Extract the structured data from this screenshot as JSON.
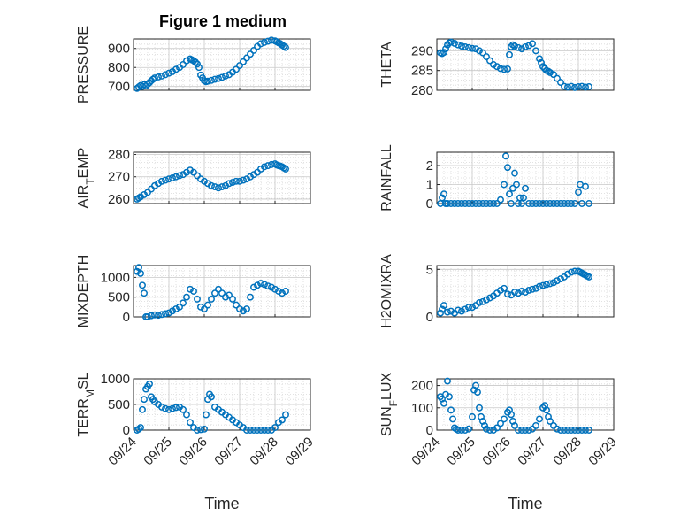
{
  "figure": {
    "title": "Figure 1 medium",
    "xlabel": "Time"
  },
  "chart_data": [
    {
      "type": "scatter",
      "ylabel": "PRESSURE",
      "ylim": [
        680,
        950
      ],
      "yticks": [
        "700",
        "800",
        "900"
      ],
      "ytick_values": [
        700,
        800,
        900
      ],
      "xlim": [
        0,
        5
      ],
      "xticks": [
        "09/24",
        "09/25",
        "09/26",
        "09/27",
        "09/28",
        "09/29"
      ],
      "grid": true,
      "marker_color": "#0072BD",
      "x": [
        0.1,
        0.15,
        0.2,
        0.25,
        0.3,
        0.35,
        0.4,
        0.45,
        0.5,
        0.55,
        0.6,
        0.7,
        0.8,
        0.9,
        1.0,
        1.1,
        1.2,
        1.3,
        1.4,
        1.5,
        1.6,
        1.65,
        1.7,
        1.75,
        1.8,
        1.85,
        1.9,
        1.95,
        2.0,
        2.05,
        2.1,
        2.2,
        2.3,
        2.4,
        2.5,
        2.6,
        2.7,
        2.8,
        2.9,
        3.0,
        3.1,
        3.2,
        3.3,
        3.4,
        3.5,
        3.6,
        3.7,
        3.8,
        3.9,
        4.0,
        4.05,
        4.1,
        4.15,
        4.2,
        4.25,
        4.3
      ],
      "y": [
        690,
        698,
        705,
        700,
        710,
        703,
        712,
        720,
        730,
        738,
        745,
        750,
        755,
        762,
        770,
        778,
        790,
        800,
        815,
        835,
        845,
        840,
        835,
        828,
        818,
        800,
        760,
        745,
        730,
        725,
        728,
        732,
        738,
        742,
        748,
        755,
        762,
        775,
        790,
        810,
        830,
        850,
        870,
        890,
        910,
        925,
        932,
        938,
        944,
        940,
        935,
        930,
        925,
        918,
        912,
        905
      ]
    },
    {
      "type": "scatter",
      "ylabel": "THETA",
      "ylim": [
        280,
        293
      ],
      "yticks": [
        "280",
        "285",
        "290"
      ],
      "ytick_values": [
        280,
        285,
        290
      ],
      "xlim": [
        0,
        5
      ],
      "xticks": [
        "09/24",
        "09/25",
        "09/26",
        "09/27",
        "09/28",
        "09/29"
      ],
      "grid": true,
      "marker_color": "#0072BD",
      "x": [
        0.1,
        0.15,
        0.2,
        0.25,
        0.3,
        0.35,
        0.4,
        0.5,
        0.6,
        0.7,
        0.8,
        0.9,
        1.0,
        1.1,
        1.2,
        1.3,
        1.4,
        1.5,
        1.6,
        1.7,
        1.8,
        1.9,
        2.0,
        2.05,
        2.1,
        2.15,
        2.2,
        2.3,
        2.4,
        2.5,
        2.6,
        2.7,
        2.8,
        2.9,
        2.95,
        3.0,
        3.05,
        3.1,
        3.15,
        3.2,
        3.3,
        3.4,
        3.5,
        3.6,
        3.7,
        3.8,
        3.9,
        4.0,
        4.1,
        4.2,
        4.3
      ],
      "y": [
        289.5,
        289.3,
        289.6,
        290.5,
        291.5,
        292.0,
        292.2,
        291.9,
        291.5,
        291.2,
        291.0,
        290.8,
        290.6,
        290.5,
        290.0,
        289.5,
        288.5,
        287.5,
        286.5,
        286.0,
        285.5,
        285.3,
        285.4,
        289.0,
        291.0,
        291.5,
        291.2,
        290.8,
        290.5,
        291.0,
        291.3,
        291.8,
        290.0,
        288.0,
        287.0,
        286.0,
        285.5,
        285.0,
        284.8,
        284.5,
        284.0,
        283.0,
        282.0,
        281.0,
        280.8,
        281.0,
        280.7,
        280.9,
        281.0,
        280.8,
        280.9
      ]
    },
    {
      "type": "scatter",
      "ylabel": "AIR_TEMP",
      "ylim": [
        258,
        281
      ],
      "yticks": [
        "260",
        "270",
        "280"
      ],
      "ytick_values": [
        260,
        270,
        280
      ],
      "xlim": [
        0,
        5
      ],
      "xticks": [
        "09/24",
        "09/25",
        "09/26",
        "09/27",
        "09/28",
        "09/29"
      ],
      "grid": true,
      "marker_color": "#0072BD",
      "x": [
        0.1,
        0.15,
        0.2,
        0.3,
        0.4,
        0.5,
        0.6,
        0.7,
        0.8,
        0.9,
        1.0,
        1.1,
        1.2,
        1.3,
        1.4,
        1.5,
        1.6,
        1.7,
        1.8,
        1.9,
        2.0,
        2.1,
        2.2,
        2.3,
        2.4,
        2.5,
        2.6,
        2.7,
        2.8,
        2.9,
        3.0,
        3.1,
        3.2,
        3.3,
        3.4,
        3.5,
        3.6,
        3.7,
        3.8,
        3.9,
        4.0,
        4.05,
        4.1,
        4.15,
        4.2,
        4.25,
        4.3
      ],
      "y": [
        260,
        260.5,
        261,
        262,
        263,
        264.5,
        266,
        267,
        268,
        268.5,
        269,
        269.5,
        270,
        270.5,
        271,
        272,
        273,
        272,
        270.5,
        269,
        268,
        267,
        266,
        265.5,
        265,
        265.5,
        266,
        267,
        267.5,
        268,
        268,
        268.5,
        269,
        270,
        271,
        272,
        273.5,
        274.5,
        275,
        275.5,
        275.8,
        275.3,
        275,
        274.8,
        274.5,
        274,
        273.5
      ]
    },
    {
      "type": "scatter",
      "ylabel": "RAINFALL",
      "ylim": [
        0,
        2.7
      ],
      "yticks": [
        "0",
        "1",
        "2"
      ],
      "ytick_values": [
        0,
        1,
        2
      ],
      "xlim": [
        0,
        5
      ],
      "xticks": [
        "09/24",
        "09/25",
        "09/26",
        "09/27",
        "09/28",
        "09/29"
      ],
      "grid": true,
      "marker_color": "#0072BD",
      "x": [
        0.1,
        0.15,
        0.2,
        0.25,
        0.3,
        0.4,
        0.5,
        0.6,
        0.7,
        0.8,
        0.9,
        1.0,
        1.1,
        1.2,
        1.3,
        1.4,
        1.5,
        1.6,
        1.7,
        1.8,
        1.9,
        1.95,
        2.0,
        2.05,
        2.1,
        2.15,
        2.2,
        2.25,
        2.3,
        2.35,
        2.4,
        2.45,
        2.5,
        2.6,
        2.7,
        2.8,
        2.9,
        3.0,
        3.1,
        3.2,
        3.3,
        3.4,
        3.5,
        3.6,
        3.7,
        3.8,
        3.9,
        4.0,
        4.05,
        4.1,
        4.2,
        4.3
      ],
      "y": [
        0,
        0.3,
        0.5,
        0,
        0,
        0,
        0,
        0,
        0,
        0,
        0,
        0,
        0,
        0,
        0,
        0,
        0,
        0,
        0,
        0.2,
        1.0,
        2.5,
        1.9,
        0.5,
        0,
        0.8,
        1.6,
        1.0,
        0,
        0.3,
        0,
        0.3,
        0.8,
        0,
        0,
        0,
        0,
        0,
        0,
        0,
        0,
        0,
        0,
        0,
        0,
        0,
        0,
        0.6,
        1.0,
        0,
        0.9,
        0
      ]
    },
    {
      "type": "scatter",
      "ylabel": "MIXDEPTH",
      "ylim": [
        0,
        1300
      ],
      "yticks": [
        "0",
        "500",
        "1000"
      ],
      "ytick_values": [
        0,
        500,
        1000
      ],
      "xlim": [
        0,
        5
      ],
      "xticks": [
        "09/24",
        "09/25",
        "09/26",
        "09/27",
        "09/28",
        "09/29"
      ],
      "grid": true,
      "marker_color": "#0072BD",
      "x": [
        0.1,
        0.15,
        0.2,
        0.25,
        0.3,
        0.35,
        0.4,
        0.5,
        0.6,
        0.7,
        0.8,
        0.9,
        1.0,
        1.1,
        1.2,
        1.3,
        1.4,
        1.5,
        1.6,
        1.7,
        1.8,
        1.9,
        2.0,
        2.1,
        2.2,
        2.3,
        2.4,
        2.5,
        2.6,
        2.7,
        2.8,
        2.9,
        3.0,
        3.1,
        3.2,
        3.3,
        3.4,
        3.5,
        3.6,
        3.7,
        3.8,
        3.9,
        4.0,
        4.1,
        4.2,
        4.3
      ],
      "y": [
        1150,
        1250,
        1100,
        800,
        600,
        0,
        0,
        30,
        50,
        40,
        60,
        80,
        100,
        150,
        200,
        250,
        350,
        500,
        700,
        650,
        450,
        250,
        200,
        300,
        450,
        600,
        700,
        600,
        500,
        550,
        450,
        300,
        200,
        150,
        200,
        500,
        750,
        800,
        850,
        820,
        780,
        750,
        700,
        650,
        600,
        650
      ]
    },
    {
      "type": "scatter",
      "ylabel": "H2OMIXRA",
      "ylim": [
        0,
        5.4
      ],
      "yticks": [
        "0",
        "5"
      ],
      "ytick_values": [
        0,
        5
      ],
      "xlim": [
        0,
        5
      ],
      "xticks": [
        "09/24",
        "09/25",
        "09/26",
        "09/27",
        "09/28",
        "09/29"
      ],
      "grid": true,
      "marker_color": "#0072BD",
      "x": [
        0.1,
        0.15,
        0.2,
        0.3,
        0.4,
        0.5,
        0.6,
        0.7,
        0.8,
        0.9,
        1.0,
        1.1,
        1.2,
        1.3,
        1.4,
        1.5,
        1.6,
        1.7,
        1.8,
        1.9,
        2.0,
        2.1,
        2.2,
        2.3,
        2.4,
        2.5,
        2.6,
        2.7,
        2.8,
        2.9,
        3.0,
        3.1,
        3.2,
        3.3,
        3.4,
        3.5,
        3.6,
        3.7,
        3.8,
        3.9,
        4.0,
        4.05,
        4.1,
        4.15,
        4.2,
        4.25,
        4.3
      ],
      "y": [
        0.4,
        0.8,
        1.2,
        0.5,
        0.6,
        0.4,
        0.7,
        0.6,
        0.8,
        1.0,
        1.0,
        1.2,
        1.5,
        1.6,
        1.8,
        2.0,
        2.2,
        2.5,
        2.8,
        3.0,
        2.4,
        2.3,
        2.6,
        2.5,
        2.7,
        2.6,
        2.8,
        2.9,
        3.0,
        3.2,
        3.3,
        3.4,
        3.5,
        3.6,
        3.8,
        4.0,
        4.2,
        4.5,
        4.7,
        4.8,
        4.8,
        4.7,
        4.6,
        4.5,
        4.4,
        4.3,
        4.2
      ]
    },
    {
      "type": "scatter",
      "ylabel": "TERR_MSL",
      "ylim": [
        0,
        1000
      ],
      "yticks": [
        "0",
        "500",
        "1000"
      ],
      "ytick_values": [
        0,
        500,
        1000
      ],
      "xlim": [
        0,
        5
      ],
      "xticks": [
        "09/24",
        "09/25",
        "09/26",
        "09/27",
        "09/28",
        "09/29"
      ],
      "grid": true,
      "marker_color": "#0072BD",
      "x": [
        0.1,
        0.15,
        0.2,
        0.25,
        0.3,
        0.35,
        0.4,
        0.45,
        0.5,
        0.55,
        0.6,
        0.7,
        0.8,
        0.9,
        1.0,
        1.1,
        1.2,
        1.3,
        1.4,
        1.5,
        1.6,
        1.7,
        1.8,
        1.9,
        2.0,
        2.05,
        2.1,
        2.15,
        2.2,
        2.3,
        2.4,
        2.5,
        2.6,
        2.7,
        2.8,
        2.9,
        3.0,
        3.1,
        3.2,
        3.3,
        3.4,
        3.5,
        3.6,
        3.7,
        3.8,
        3.9,
        4.0,
        4.1,
        4.2,
        4.3
      ],
      "y": [
        0,
        20,
        50,
        400,
        600,
        800,
        850,
        900,
        650,
        600,
        550,
        500,
        450,
        420,
        400,
        420,
        440,
        450,
        400,
        300,
        150,
        50,
        0,
        10,
        20,
        300,
        600,
        700,
        650,
        450,
        400,
        350,
        300,
        250,
        200,
        150,
        100,
        50,
        0,
        0,
        0,
        0,
        0,
        0,
        0,
        0,
        50,
        150,
        200,
        300
      ]
    },
    {
      "type": "scatter",
      "ylabel": "SUN_FLUX",
      "ylim": [
        0,
        230
      ],
      "yticks": [
        "0",
        "100",
        "200"
      ],
      "ytick_values": [
        0,
        100,
        200
      ],
      "xlim": [
        0,
        5
      ],
      "xticks": [
        "09/24",
        "09/25",
        "09/26",
        "09/27",
        "09/28",
        "09/29"
      ],
      "grid": true,
      "marker_color": "#0072BD",
      "x": [
        0.1,
        0.15,
        0.2,
        0.25,
        0.3,
        0.35,
        0.4,
        0.45,
        0.5,
        0.55,
        0.6,
        0.7,
        0.8,
        0.9,
        1.0,
        1.05,
        1.1,
        1.15,
        1.2,
        1.25,
        1.3,
        1.35,
        1.4,
        1.5,
        1.6,
        1.7,
        1.8,
        1.9,
        2.0,
        2.05,
        2.1,
        2.15,
        2.2,
        2.3,
        2.4,
        2.5,
        2.6,
        2.7,
        2.8,
        2.9,
        3.0,
        3.05,
        3.1,
        3.15,
        3.2,
        3.3,
        3.4,
        3.5,
        3.6,
        3.7,
        3.8,
        3.9,
        4.0,
        4.1,
        4.2,
        4.3
      ],
      "y": [
        150,
        140,
        120,
        160,
        220,
        150,
        90,
        50,
        10,
        5,
        0,
        0,
        0,
        5,
        60,
        180,
        200,
        170,
        100,
        60,
        40,
        20,
        5,
        0,
        0,
        10,
        30,
        50,
        80,
        90,
        70,
        40,
        20,
        0,
        0,
        0,
        0,
        5,
        20,
        50,
        100,
        110,
        90,
        60,
        40,
        20,
        5,
        0,
        0,
        0,
        0,
        0,
        0,
        0,
        0,
        0
      ]
    }
  ]
}
